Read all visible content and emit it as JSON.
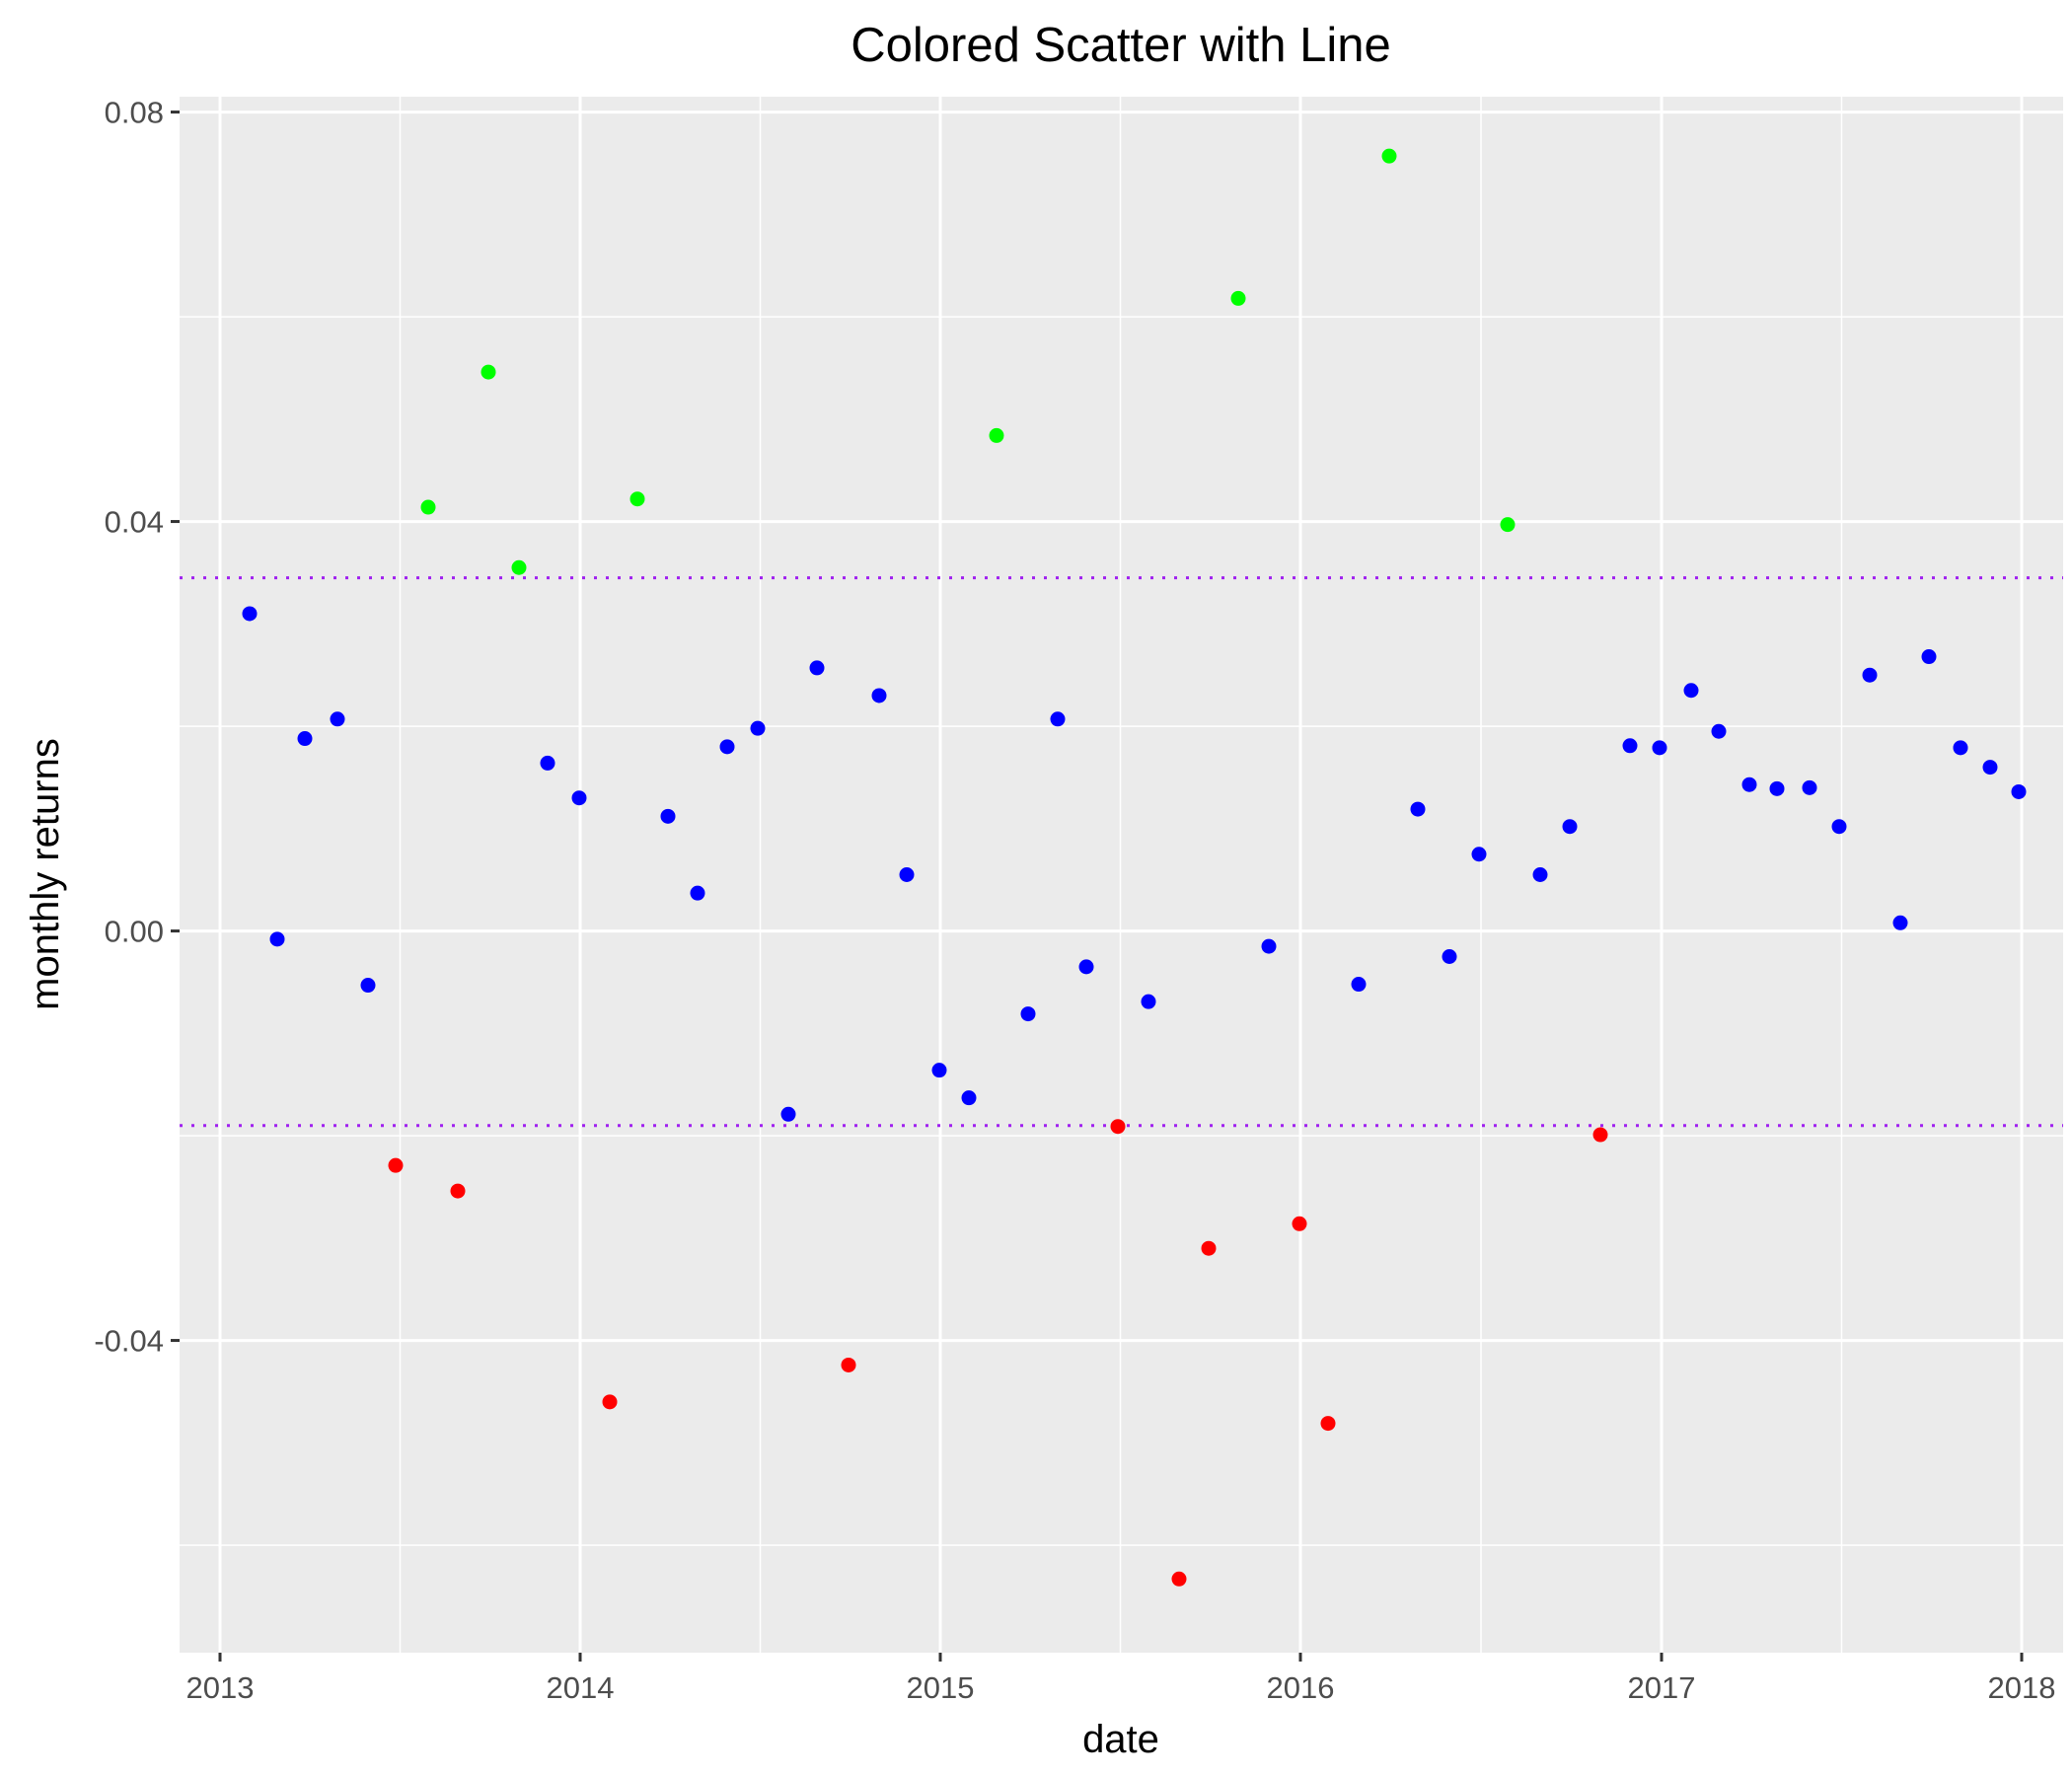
{
  "chart_data": {
    "type": "scatter",
    "title": "Colored Scatter with Line",
    "xlabel": "date",
    "ylabel": "monthly returns",
    "xlim": [
      "2012-11-21",
      "2018-02-12"
    ],
    "ylim": [
      -0.0705,
      0.0815
    ],
    "x_ticks": [
      {
        "value": "2013-01-01",
        "label": "2013"
      },
      {
        "value": "2014-01-01",
        "label": "2014"
      },
      {
        "value": "2015-01-01",
        "label": "2015"
      },
      {
        "value": "2016-01-01",
        "label": "2016"
      },
      {
        "value": "2017-01-01",
        "label": "2017"
      },
      {
        "value": "2018-01-01",
        "label": "2018"
      }
    ],
    "y_ticks": [
      {
        "value": 0.08,
        "label": "0.08"
      },
      {
        "value": 0.04,
        "label": "0.04"
      },
      {
        "value": 0.0,
        "label": "0.00"
      },
      {
        "value": -0.04,
        "label": "-0.04"
      }
    ],
    "hlines": [
      {
        "y": 0.0345,
        "color": "#a020f0",
        "style": "dotted"
      },
      {
        "y": -0.019,
        "color": "#a020f0",
        "style": "dotted"
      }
    ],
    "colors": {
      "low": "#ff0000",
      "mid": "#0000ff",
      "high": "#00ff00",
      "panel": "#ebebeb",
      "grid": "#ffffff"
    },
    "grid": true,
    "legend": "none",
    "points": [
      {
        "x": "2013-01-31",
        "y": 0.031,
        "group": "mid"
      },
      {
        "x": "2013-02-28",
        "y": -0.0008,
        "group": "mid"
      },
      {
        "x": "2013-03-28",
        "y": 0.0188,
        "group": "mid"
      },
      {
        "x": "2013-04-30",
        "y": 0.0207,
        "group": "mid"
      },
      {
        "x": "2013-05-31",
        "y": -0.0053,
        "group": "mid"
      },
      {
        "x": "2013-06-28",
        "y": -0.0229,
        "group": "low"
      },
      {
        "x": "2013-07-31",
        "y": 0.0414,
        "group": "high"
      },
      {
        "x": "2013-08-30",
        "y": -0.0254,
        "group": "low"
      },
      {
        "x": "2013-09-30",
        "y": 0.0546,
        "group": "high"
      },
      {
        "x": "2013-10-31",
        "y": 0.0355,
        "group": "high"
      },
      {
        "x": "2013-11-29",
        "y": 0.0164,
        "group": "mid"
      },
      {
        "x": "2013-12-31",
        "y": 0.013,
        "group": "mid"
      },
      {
        "x": "2014-01-31",
        "y": -0.046,
        "group": "low"
      },
      {
        "x": "2014-02-28",
        "y": 0.0422,
        "group": "high"
      },
      {
        "x": "2014-03-31",
        "y": 0.0112,
        "group": "mid"
      },
      {
        "x": "2014-04-30",
        "y": 0.0037,
        "group": "mid"
      },
      {
        "x": "2014-05-30",
        "y": 0.018,
        "group": "mid"
      },
      {
        "x": "2014-06-30",
        "y": 0.0198,
        "group": "mid"
      },
      {
        "x": "2014-07-31",
        "y": -0.0179,
        "group": "mid"
      },
      {
        "x": "2014-08-29",
        "y": 0.0257,
        "group": "mid"
      },
      {
        "x": "2014-09-30",
        "y": -0.0424,
        "group": "low"
      },
      {
        "x": "2014-10-31",
        "y": 0.023,
        "group": "mid"
      },
      {
        "x": "2014-11-28",
        "y": 0.0055,
        "group": "mid"
      },
      {
        "x": "2014-12-31",
        "y": -0.0136,
        "group": "mid"
      },
      {
        "x": "2015-01-30",
        "y": -0.0163,
        "group": "mid"
      },
      {
        "x": "2015-02-27",
        "y": 0.0484,
        "group": "high"
      },
      {
        "x": "2015-03-31",
        "y": -0.0081,
        "group": "mid"
      },
      {
        "x": "2015-04-30",
        "y": 0.0207,
        "group": "mid"
      },
      {
        "x": "2015-05-29",
        "y": -0.0035,
        "group": "mid"
      },
      {
        "x": "2015-06-30",
        "y": -0.0191,
        "group": "low"
      },
      {
        "x": "2015-07-31",
        "y": -0.0069,
        "group": "mid"
      },
      {
        "x": "2015-08-31",
        "y": -0.0633,
        "group": "low"
      },
      {
        "x": "2015-09-30",
        "y": -0.031,
        "group": "low"
      },
      {
        "x": "2015-10-30",
        "y": 0.0618,
        "group": "high"
      },
      {
        "x": "2015-11-30",
        "y": -0.0015,
        "group": "mid"
      },
      {
        "x": "2015-12-31",
        "y": -0.0286,
        "group": "low"
      },
      {
        "x": "2016-01-29",
        "y": -0.0481,
        "group": "low"
      },
      {
        "x": "2016-02-29",
        "y": -0.0052,
        "group": "mid"
      },
      {
        "x": "2016-03-31",
        "y": 0.0757,
        "group": "high"
      },
      {
        "x": "2016-04-29",
        "y": 0.0119,
        "group": "mid"
      },
      {
        "x": "2016-05-31",
        "y": -0.0025,
        "group": "mid"
      },
      {
        "x": "2016-06-30",
        "y": 0.0075,
        "group": "mid"
      },
      {
        "x": "2016-07-29",
        "y": 0.0397,
        "group": "high"
      },
      {
        "x": "2016-08-31",
        "y": 0.0055,
        "group": "mid"
      },
      {
        "x": "2016-09-30",
        "y": 0.0102,
        "group": "mid"
      },
      {
        "x": "2016-10-31",
        "y": -0.0199,
        "group": "low"
      },
      {
        "x": "2016-11-30",
        "y": 0.0181,
        "group": "mid"
      },
      {
        "x": "2016-12-30",
        "y": 0.0179,
        "group": "mid"
      },
      {
        "x": "2017-01-31",
        "y": 0.0235,
        "group": "mid"
      },
      {
        "x": "2017-02-28",
        "y": 0.0195,
        "group": "mid"
      },
      {
        "x": "2017-03-31",
        "y": 0.0143,
        "group": "mid"
      },
      {
        "x": "2017-04-28",
        "y": 0.0139,
        "group": "mid"
      },
      {
        "x": "2017-05-31",
        "y": 0.014,
        "group": "mid"
      },
      {
        "x": "2017-06-30",
        "y": 0.0102,
        "group": "mid"
      },
      {
        "x": "2017-07-31",
        "y": 0.025,
        "group": "mid"
      },
      {
        "x": "2017-08-31",
        "y": 0.0008,
        "group": "mid"
      },
      {
        "x": "2017-09-29",
        "y": 0.0268,
        "group": "mid"
      },
      {
        "x": "2017-10-31",
        "y": 0.0179,
        "group": "mid"
      },
      {
        "x": "2017-11-30",
        "y": 0.016,
        "group": "mid"
      },
      {
        "x": "2017-12-29",
        "y": 0.0136,
        "group": "mid"
      }
    ]
  }
}
